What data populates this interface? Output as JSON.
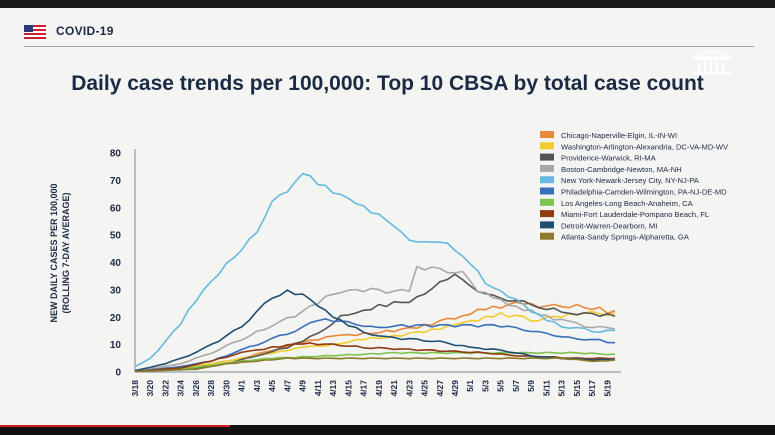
{
  "header": {
    "section_label": "COVID-19",
    "flag_icon": "us-flag-icon",
    "seal_icon": "white-house-seal-icon"
  },
  "chart_data": {
    "type": "line",
    "title": "Daily case trends per 100,000: Top 10 CBSA by total case count",
    "ylabel": "NEW DAILY CASES PER 100,000 (ROLLING 7-DAY AVERAGE)",
    "ylabel_lines": [
      "NEW DAILY CASES  PER 100,000",
      "(ROLLING 7-DAY AVERAGE)"
    ],
    "xlabel": "",
    "ylim": [
      0,
      80
    ],
    "yticks": [
      0,
      10,
      20,
      30,
      40,
      50,
      60,
      70,
      80
    ],
    "grid": false,
    "legend_position": "top-right",
    "x_start_label": "3/18",
    "x_points": 64,
    "xticks": [
      {
        "index": 0,
        "label": "3/18"
      },
      {
        "index": 2,
        "label": "3/20"
      },
      {
        "index": 4,
        "label": "3/22"
      },
      {
        "index": 6,
        "label": "3/24"
      },
      {
        "index": 8,
        "label": "3/26"
      },
      {
        "index": 10,
        "label": "3/28"
      },
      {
        "index": 12,
        "label": "3/30"
      },
      {
        "index": 14,
        "label": "4/1"
      },
      {
        "index": 16,
        "label": "4/3"
      },
      {
        "index": 18,
        "label": "4/5"
      },
      {
        "index": 20,
        "label": "4/7"
      },
      {
        "index": 22,
        "label": "4/9"
      },
      {
        "index": 24,
        "label": "4/11"
      },
      {
        "index": 26,
        "label": "4/13"
      },
      {
        "index": 28,
        "label": "4/15"
      },
      {
        "index": 30,
        "label": "4/17"
      },
      {
        "index": 32,
        "label": "4/19"
      },
      {
        "index": 34,
        "label": "4/21"
      },
      {
        "index": 36,
        "label": "4/23"
      },
      {
        "index": 38,
        "label": "4/25"
      },
      {
        "index": 40,
        "label": "4/27"
      },
      {
        "index": 42,
        "label": "4/29"
      },
      {
        "index": 44,
        "label": "5/1"
      },
      {
        "index": 46,
        "label": "5/3"
      },
      {
        "index": 48,
        "label": "5/5"
      },
      {
        "index": 50,
        "label": "5/7"
      },
      {
        "index": 52,
        "label": "5/9"
      },
      {
        "index": 54,
        "label": "5/11"
      },
      {
        "index": 56,
        "label": "5/13"
      },
      {
        "index": 58,
        "label": "5/15"
      },
      {
        "index": 60,
        "label": "5/17"
      },
      {
        "index": 62,
        "label": "5/19"
      }
    ],
    "series": [
      {
        "name": "Chicago-Naperville-Elgin, IL-IN-WI",
        "color": "#e8883a",
        "anchors": [
          [
            0,
            0.3
          ],
          [
            6,
            1.5
          ],
          [
            10,
            3
          ],
          [
            14,
            5
          ],
          [
            18,
            8
          ],
          [
            22,
            11
          ],
          [
            26,
            13
          ],
          [
            30,
            14
          ],
          [
            34,
            15
          ],
          [
            38,
            17
          ],
          [
            42,
            20
          ],
          [
            46,
            23
          ],
          [
            50,
            25
          ],
          [
            54,
            24
          ],
          [
            58,
            24
          ],
          [
            61,
            23
          ],
          [
            62,
            21
          ],
          [
            63,
            22
          ]
        ]
      },
      {
        "name": "Washington-Arlington-Alexandria, DC-VA-MD-WV",
        "color": "#f0cc2e",
        "anchors": [
          [
            0,
            0.3
          ],
          [
            6,
            1.5
          ],
          [
            10,
            3
          ],
          [
            14,
            5
          ],
          [
            18,
            7
          ],
          [
            22,
            9
          ],
          [
            26,
            10
          ],
          [
            30,
            12
          ],
          [
            34,
            13
          ],
          [
            38,
            15
          ],
          [
            42,
            17
          ],
          [
            46,
            20
          ],
          [
            48,
            21
          ],
          [
            50,
            20.5
          ],
          [
            52,
            19
          ],
          [
            55,
            20
          ],
          [
            58,
            21
          ],
          [
            61,
            22
          ],
          [
            62,
            20
          ],
          [
            63,
            21
          ]
        ]
      },
      {
        "name": "Providence-Warwick, RI-MA",
        "color": "#555555",
        "anchors": [
          [
            0,
            0.2
          ],
          [
            8,
            1.5
          ],
          [
            12,
            3
          ],
          [
            16,
            6
          ],
          [
            20,
            9
          ],
          [
            24,
            14
          ],
          [
            27,
            20
          ],
          [
            29,
            22
          ],
          [
            32,
            24
          ],
          [
            36,
            26
          ],
          [
            38,
            29
          ],
          [
            40,
            33
          ],
          [
            42,
            35
          ],
          [
            43,
            34
          ],
          [
            44,
            31
          ],
          [
            46,
            28
          ],
          [
            48,
            27
          ],
          [
            50,
            26
          ],
          [
            53,
            24
          ],
          [
            56,
            22
          ],
          [
            59,
            21
          ],
          [
            62,
            21
          ],
          [
            63,
            20
          ]
        ]
      },
      {
        "name": "Boston-Cambridge-Newton, MA-NH",
        "color": "#a8a8a8",
        "anchors": [
          [
            0,
            0.3
          ],
          [
            6,
            3
          ],
          [
            10,
            7
          ],
          [
            14,
            12
          ],
          [
            18,
            17
          ],
          [
            22,
            22
          ],
          [
            24,
            25
          ],
          [
            26,
            29
          ],
          [
            28,
            30
          ],
          [
            32,
            30
          ],
          [
            34,
            29
          ],
          [
            36,
            30
          ],
          [
            37,
            38
          ],
          [
            39,
            38
          ],
          [
            41,
            37
          ],
          [
            43,
            36
          ],
          [
            45,
            30
          ],
          [
            47,
            27
          ],
          [
            50,
            24
          ],
          [
            53,
            21
          ],
          [
            56,
            19
          ],
          [
            59,
            17
          ],
          [
            62,
            16
          ],
          [
            63,
            16
          ]
        ]
      },
      {
        "name": "New York-Newark-Jersey City, NY-NJ-PA",
        "color": "#66b9df",
        "anchors": [
          [
            0,
            2
          ],
          [
            2,
            5
          ],
          [
            4,
            11
          ],
          [
            6,
            18
          ],
          [
            8,
            26
          ],
          [
            10,
            33
          ],
          [
            12,
            39
          ],
          [
            14,
            45
          ],
          [
            16,
            51
          ],
          [
            17,
            57
          ],
          [
            18,
            62
          ],
          [
            20,
            66
          ],
          [
            22,
            73
          ],
          [
            24,
            69
          ],
          [
            26,
            66
          ],
          [
            28,
            64
          ],
          [
            30,
            60
          ],
          [
            32,
            57
          ],
          [
            34,
            53
          ],
          [
            36,
            48
          ],
          [
            38,
            47
          ],
          [
            40,
            48
          ],
          [
            42,
            45
          ],
          [
            44,
            40
          ],
          [
            46,
            33
          ],
          [
            48,
            29
          ],
          [
            50,
            26
          ],
          [
            52,
            22
          ],
          [
            54,
            19
          ],
          [
            56,
            17
          ],
          [
            58,
            16
          ],
          [
            60,
            15
          ],
          [
            62,
            15
          ],
          [
            63,
            15
          ]
        ]
      },
      {
        "name": "Philadelphia-Camden-Wilmington, PA-NJ-DE-MD",
        "color": "#3a6fba",
        "anchors": [
          [
            0,
            0.2
          ],
          [
            6,
            2
          ],
          [
            10,
            4
          ],
          [
            14,
            8
          ],
          [
            18,
            12
          ],
          [
            22,
            16
          ],
          [
            24,
            19
          ],
          [
            26,
            19
          ],
          [
            28,
            18
          ],
          [
            30,
            17
          ],
          [
            32,
            16
          ],
          [
            34,
            17
          ],
          [
            36,
            17
          ],
          [
            38,
            17
          ],
          [
            40,
            17
          ],
          [
            42,
            17
          ],
          [
            44,
            17
          ],
          [
            46,
            17
          ],
          [
            48,
            17
          ],
          [
            50,
            16
          ],
          [
            52,
            15
          ],
          [
            54,
            14
          ],
          [
            56,
            13
          ],
          [
            58,
            12
          ],
          [
            60,
            12
          ],
          [
            62,
            11
          ],
          [
            63,
            11
          ]
        ]
      },
      {
        "name": "Los Angeles-Long Beach-Anaheim, CA",
        "color": "#7ec34f",
        "anchors": [
          [
            0,
            0.2
          ],
          [
            6,
            1
          ],
          [
            10,
            2.5
          ],
          [
            14,
            4
          ],
          [
            18,
            5
          ],
          [
            22,
            5.5
          ],
          [
            26,
            6
          ],
          [
            30,
            6.5
          ],
          [
            34,
            7
          ],
          [
            38,
            7
          ],
          [
            42,
            7
          ],
          [
            46,
            7
          ],
          [
            50,
            7
          ],
          [
            54,
            7
          ],
          [
            58,
            7
          ],
          [
            62,
            6.5
          ],
          [
            63,
            6.5
          ]
        ]
      },
      {
        "name": "Miami-Fort Lauderdale-Pompano Beach, FL",
        "color": "#8e3a12",
        "anchors": [
          [
            0,
            0.2
          ],
          [
            6,
            1.5
          ],
          [
            10,
            4
          ],
          [
            14,
            7
          ],
          [
            18,
            9
          ],
          [
            22,
            10.5
          ],
          [
            26,
            10
          ],
          [
            30,
            9
          ],
          [
            34,
            8.5
          ],
          [
            38,
            8
          ],
          [
            42,
            7.5
          ],
          [
            46,
            7
          ],
          [
            50,
            6
          ],
          [
            54,
            5.5
          ],
          [
            58,
            5
          ],
          [
            62,
            5
          ],
          [
            63,
            5
          ]
        ]
      },
      {
        "name": "Detroit-Warren-Dearborn, MI",
        "color": "#1f4e70",
        "anchors": [
          [
            0,
            0.5
          ],
          [
            4,
            3
          ],
          [
            8,
            7
          ],
          [
            12,
            13
          ],
          [
            14,
            17
          ],
          [
            16,
            22
          ],
          [
            18,
            27
          ],
          [
            20,
            30
          ],
          [
            22,
            28
          ],
          [
            24,
            24
          ],
          [
            26,
            20
          ],
          [
            28,
            17
          ],
          [
            30,
            15
          ],
          [
            32,
            13
          ],
          [
            36,
            12
          ],
          [
            40,
            11
          ],
          [
            44,
            9
          ],
          [
            48,
            8
          ],
          [
            52,
            6
          ],
          [
            56,
            5
          ],
          [
            60,
            4.5
          ],
          [
            63,
            4.5
          ]
        ]
      },
      {
        "name": "Atlanta-Sandy Springs-Alpharetta, GA",
        "color": "#8a7a2a",
        "anchors": [
          [
            0,
            0.2
          ],
          [
            8,
            1
          ],
          [
            12,
            3
          ],
          [
            16,
            4
          ],
          [
            20,
            5
          ],
          [
            24,
            5
          ],
          [
            28,
            5
          ],
          [
            32,
            5
          ],
          [
            36,
            5
          ],
          [
            40,
            5
          ],
          [
            44,
            5
          ],
          [
            48,
            5
          ],
          [
            52,
            5
          ],
          [
            56,
            5
          ],
          [
            60,
            4
          ],
          [
            62,
            4
          ],
          [
            63,
            4.5
          ]
        ]
      }
    ]
  }
}
